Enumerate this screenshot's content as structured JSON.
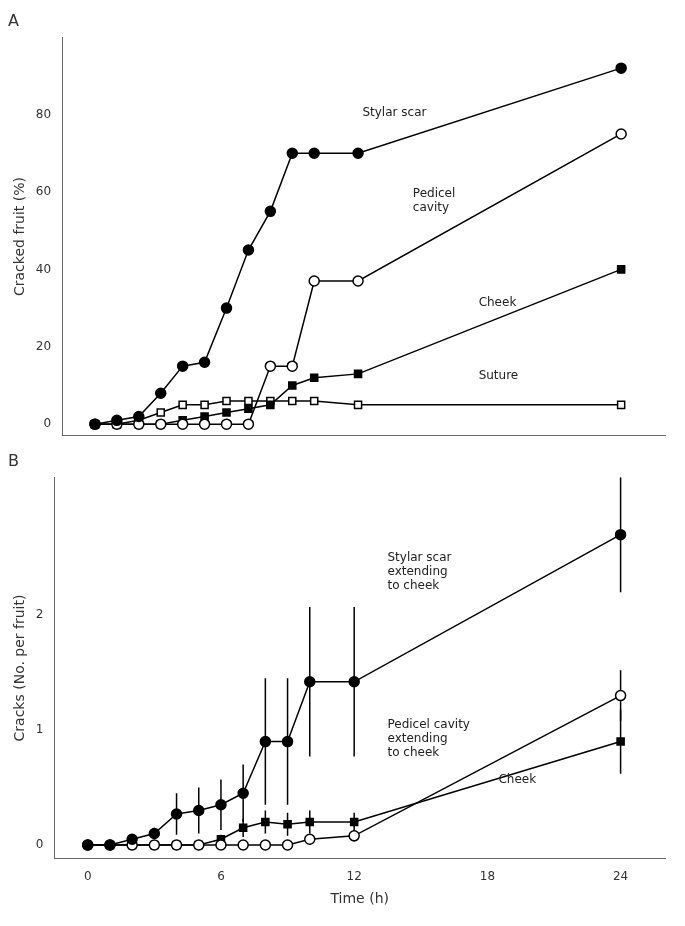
{
  "chart_data": [
    {
      "type": "line",
      "title": "A",
      "y_label": "Cracked fruit (%)",
      "x": [
        0,
        1,
        2,
        3,
        4,
        5,
        6,
        7,
        8,
        9,
        10,
        12,
        24
      ],
      "xlim": [
        -1.5,
        26
      ],
      "xticks": [
        0,
        6,
        12,
        18,
        24
      ],
      "ylim": [
        -3,
        100
      ],
      "yticks": [
        0,
        20,
        40,
        60,
        80
      ],
      "grid": false,
      "legend": false,
      "tick_labels": "y",
      "series": [
        {
          "color": "#000000",
          "marker": "circle",
          "values": [
            0,
            1,
            2,
            8,
            15,
            16,
            30,
            45,
            55,
            70,
            70,
            70,
            92
          ]
        },
        {
          "color": "#000000",
          "marker": "circle-open",
          "values": [
            0,
            0,
            0,
            0,
            0,
            0,
            0,
            0,
            15,
            15,
            37,
            37,
            75
          ]
        },
        {
          "color": "#000000",
          "marker": "square",
          "values": [
            0,
            0,
            0,
            0,
            1,
            2,
            3,
            4,
            5,
            10,
            12,
            13,
            40
          ]
        },
        {
          "color": "#000000",
          "marker": "square-open",
          "values": [
            0,
            0,
            1,
            3,
            5,
            5,
            6,
            6,
            6,
            6,
            6,
            5,
            5
          ]
        }
      ],
      "annotations": [
        {
          "text": "Stylar scar",
          "x": 12.2,
          "y": 82
        },
        {
          "text": "Pedicel\ncavity",
          "x": 14.5,
          "y": 61
        },
        {
          "text": "Cheek",
          "x": 17.5,
          "y": 33
        },
        {
          "text": "Suture",
          "x": 17.5,
          "y": 14
        }
      ]
    },
    {
      "type": "line",
      "title": "B",
      "x_label": "Time (h)",
      "y_label": "Cracks (No. per fruit)",
      "x": [
        0,
        1,
        2,
        3,
        4,
        5,
        6,
        7,
        8,
        9,
        10,
        12,
        24
      ],
      "xlim": [
        -1.5,
        26
      ],
      "xticks": [
        0,
        6,
        12,
        18,
        24
      ],
      "ylim": [
        -0.12,
        3.2
      ],
      "yticks": [
        0,
        1,
        2
      ],
      "grid": false,
      "legend": false,
      "series": [
        {
          "color": "#000000",
          "marker": "circle",
          "values": [
            0,
            0,
            0.05,
            0.1,
            0.27,
            0.3,
            0.35,
            0.45,
            0.9,
            0.9,
            1.42,
            1.42,
            2.7
          ],
          "yerr": [
            0,
            0,
            0.0,
            0.05,
            0.18,
            0.2,
            0.22,
            0.25,
            0.55,
            0.55,
            0.65,
            0.65,
            0.5
          ]
        },
        {
          "color": "#000000",
          "marker": "circle-open",
          "values": [
            0,
            0,
            0,
            0,
            0,
            0,
            0,
            0,
            0,
            0,
            0.05,
            0.08,
            1.3
          ],
          "yerr": [
            0,
            0,
            0,
            0,
            0,
            0,
            0,
            0,
            0,
            0,
            0.04,
            0.05,
            0.22
          ]
        },
        {
          "color": "#000000",
          "marker": "square",
          "values": [
            0,
            0,
            0,
            0,
            0,
            0,
            0.05,
            0.15,
            0.2,
            0.18,
            0.2,
            0.2,
            0.9
          ],
          "yerr": [
            0,
            0,
            0,
            0,
            0,
            0,
            0.04,
            0.08,
            0.1,
            0.1,
            0.1,
            0.08,
            0.28
          ]
        }
      ],
      "annotations": [
        {
          "text": "Stylar scar\nextending\nto cheek",
          "x": 13.5,
          "y": 2.55
        },
        {
          "text": "Pedicel cavity\nextending\nto cheek",
          "x": 13.5,
          "y": 1.1
        },
        {
          "text": "Cheek",
          "x": 18.5,
          "y": 0.62
        }
      ]
    }
  ]
}
